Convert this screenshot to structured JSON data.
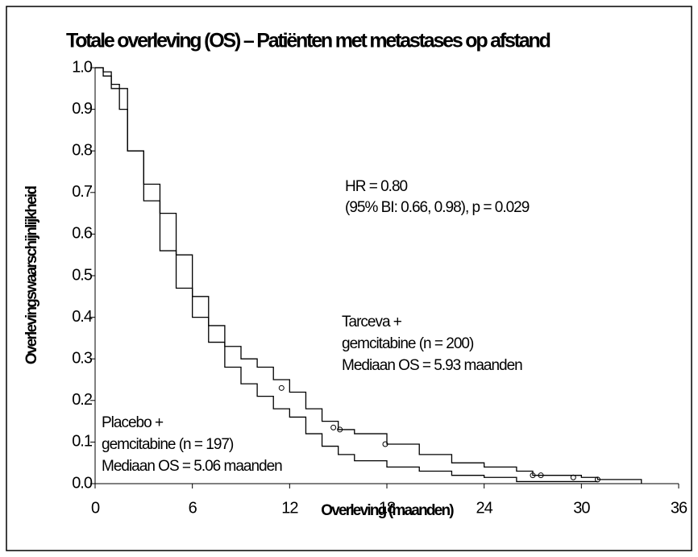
{
  "chart_data": {
    "type": "step",
    "title": "Totale overleving (OS) – Patiënten met metastases op afstand",
    "xlabel": "Overleving (maanden)",
    "ylabel": "Overlevingswaarschijnlijkheid",
    "xlim": [
      0,
      36
    ],
    "ylim": [
      0,
      1
    ],
    "xticks": [
      0,
      6,
      12,
      18,
      24,
      30,
      36
    ],
    "yticks": [
      {
        "value": 0,
        "label": "0.0"
      },
      0.1,
      0.2,
      0.3,
      0.4,
      0.5,
      0.6,
      0.7,
      0.8,
      0.9,
      {
        "value": 1,
        "label": "1.0"
      }
    ],
    "series": [
      {
        "color": "#000000",
        "x": [
          0,
          0.5,
          1,
          1.5,
          2,
          3,
          4,
          5,
          6,
          7,
          8,
          9,
          10,
          11,
          12,
          13,
          14,
          15,
          16,
          18,
          20,
          22,
          24,
          26,
          27,
          30,
          31,
          33.7
        ],
        "values": [
          1,
          0.99,
          0.96,
          0.9,
          0.8,
          0.72,
          0.65,
          0.55,
          0.45,
          0.38,
          0.33,
          0.3,
          0.28,
          0.25,
          0.22,
          0.18,
          0.15,
          0.13,
          0.12,
          0.095,
          0.07,
          0.05,
          0.04,
          0.03,
          0.02,
          0.015,
          0.01,
          0
        ],
        "censored": {
          "x": [
            11.5,
            14.7,
            15.1,
            17.9,
            27,
            27.5,
            29.5,
            31
          ],
          "values": [
            0.23,
            0.135,
            0.13,
            0.095,
            0.02,
            0.02,
            0.015,
            0.01
          ]
        }
      },
      {
        "color": "#000000",
        "x": [
          0,
          0.5,
          1,
          2,
          3,
          4,
          5,
          6,
          7,
          8,
          9,
          10,
          11,
          12,
          13,
          14,
          15,
          16,
          18,
          20,
          22,
          24,
          26,
          31
        ],
        "values": [
          1,
          0.98,
          0.95,
          0.8,
          0.68,
          0.56,
          0.47,
          0.4,
          0.34,
          0.28,
          0.24,
          0.21,
          0.18,
          0.16,
          0.12,
          0.09,
          0.07,
          0.055,
          0.04,
          0.03,
          0.02,
          0.015,
          0.005,
          0.005
        ]
      }
    ],
    "annotations": [
      {
        "lines": [
          "HR = 0.80",
          "(95% BI: 0.66, 0.98), p = 0.029"
        ]
      },
      {
        "lines": [
          "Tarceva +",
          "gemcitabine (n = 200)",
          "Mediaan OS = 5.93 maanden"
        ]
      },
      {
        "lines": [
          "Placebo +",
          "gemcitabine (n = 197)",
          "Mediaan OS = 5.06 maanden"
        ]
      }
    ]
  }
}
